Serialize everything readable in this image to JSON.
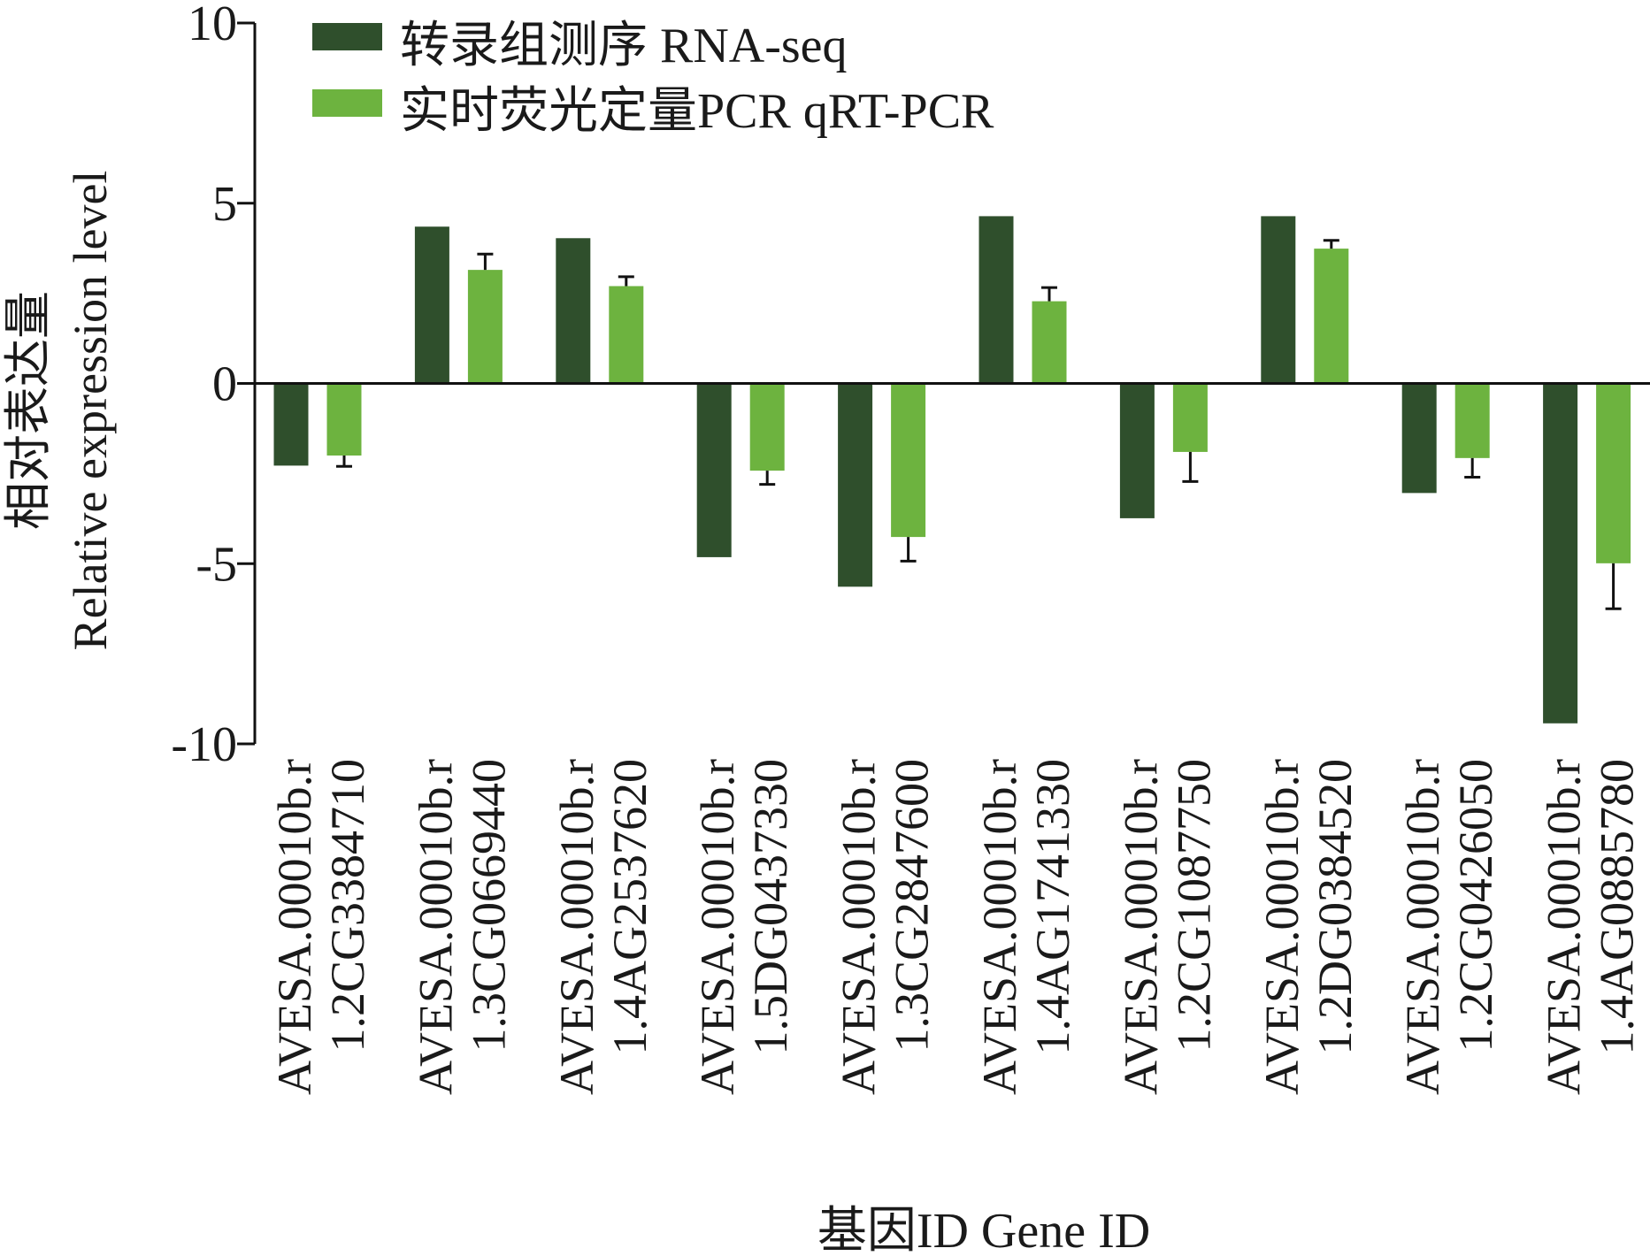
{
  "chart_data": {
    "type": "bar",
    "title": "",
    "xlabel": "基因ID Gene  ID",
    "ylabel_cn": "相对表达量",
    "ylabel": "Relative expression level",
    "ylim": [
      -10,
      10
    ],
    "yticks": [
      10,
      5,
      0,
      -5,
      -10
    ],
    "ytick_labels": [
      "10",
      "5",
      "0",
      "-5",
      "-10"
    ],
    "legend_position": "top-left",
    "categories": [
      [
        "AVESA.00010b.r",
        "1.2CG3384710"
      ],
      [
        "AVESA.00010b.r",
        "1.3CG0669440"
      ],
      [
        "AVESA.00010b.r",
        "1.4AG2537620"
      ],
      [
        "AVESA.00010b.r",
        "1.5DG0437330"
      ],
      [
        "AVESA.00010b.r",
        "1.3CG2847600"
      ],
      [
        "AVESA.00010b.r",
        "1.4AG1741330"
      ],
      [
        "AVESA.00010b.r",
        "1.2CG1087750"
      ],
      [
        "AVESA.00010b.r",
        "1.2DG0384520"
      ],
      [
        "AVESA.00010b.r",
        "1.2CG0426050"
      ],
      [
        "AVESA.00010b.r",
        "1.4AG0885780"
      ]
    ],
    "series": [
      {
        "name": "转录组测序 RNA-seq",
        "color": "#2f4f2c",
        "values": [
          -2.28,
          4.35,
          4.03,
          -4.82,
          -5.64,
          4.64,
          -3.74,
          4.64,
          -3.04,
          -9.43
        ]
      },
      {
        "name": "实时荧光定量PCR qRT-PCR",
        "color": "#6db33f",
        "values": [
          -2.0,
          3.15,
          2.7,
          -2.42,
          -4.26,
          2.28,
          -1.9,
          3.74,
          -2.07,
          -4.99
        ],
        "error": [
          0.3,
          0.44,
          0.26,
          0.38,
          0.67,
          0.38,
          0.82,
          0.23,
          0.53,
          1.26
        ]
      }
    ]
  }
}
